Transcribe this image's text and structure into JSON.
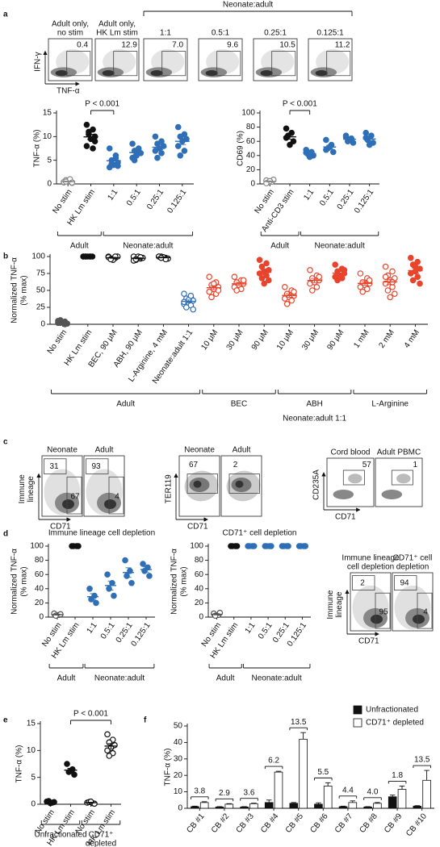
{
  "panel_labels": [
    "a",
    "b",
    "c",
    "d",
    "e",
    "f"
  ],
  "panel_a_flow": {
    "bracket": "Neonate:adult",
    "y_label": "IFN-γ",
    "x_label": "TNF-α",
    "plots": [
      {
        "title": [
          "Adult only,",
          "no stim"
        ],
        "gates": [
          "0.4"
        ]
      },
      {
        "title": [
          "Adult only,",
          "HK Lm stim"
        ],
        "gates": [
          "12.9"
        ]
      },
      {
        "title": "1:1",
        "gates": [
          "7.0"
        ]
      },
      {
        "title": "0.5:1",
        "gates": [
          "9.6"
        ]
      },
      {
        "title": "0.25:1",
        "gates": [
          "10.5"
        ]
      },
      {
        "title": "0.125:1",
        "gates": [
          "11.2"
        ]
      }
    ]
  },
  "panel_c_flow": [
    {
      "y_label": [
        "Immune",
        "lineage"
      ],
      "x_label": "CD71",
      "plots": [
        {
          "title": "Neonate",
          "gates": [
            "31",
            "67"
          ]
        },
        {
          "title": "Adult",
          "gates": [
            "93",
            "4"
          ]
        }
      ]
    },
    {
      "y_label": "TER119",
      "x_label": "CD71",
      "plots": [
        {
          "title": "Neonate",
          "gates": [
            "67"
          ]
        },
        {
          "title": "Adult",
          "gates": [
            "2"
          ]
        }
      ]
    },
    {
      "y_label": "CD235A",
      "x_label": "CD71",
      "plots": [
        {
          "title": "Cord blood",
          "gates": [
            "57"
          ]
        },
        {
          "title": "Adult PBMC",
          "gates": [
            "1"
          ]
        }
      ]
    }
  ],
  "panel_d_flow": {
    "y_label": [
      "Immune",
      "lineage"
    ],
    "x_label": "CD71",
    "plots": [
      {
        "title": [
          "Immune lineage",
          "cell depletion"
        ],
        "gates": [
          "2",
          "95"
        ]
      },
      {
        "title": [
          "CD71⁺ cell",
          "depletion"
        ],
        "gates": [
          "94",
          "4"
        ]
      }
    ]
  },
  "chart_data": [
    {
      "type": "dot",
      "y_label": "TNF-α (%)",
      "annotation": "P < 0.001",
      "ylim": [
        0,
        15
      ],
      "yticks": [
        0,
        5,
        10,
        15
      ],
      "groups": [
        {
          "label": "Adult",
          "categories": [
            "No stim",
            "HK Lm stim"
          ],
          "colors": [
            "#888888",
            "#111111"
          ],
          "markers": [
            "open",
            "filled"
          ],
          "values": [
            [
              0.3,
              0.5,
              0.8,
              0.2,
              0.6,
              0.4,
              1.0,
              0.5,
              0.3
            ],
            [
              12.5,
              11.5,
              10.5,
              10,
              9.5,
              8,
              7.5,
              11,
              9
            ]
          ]
        },
        {
          "label": "Neonate:adult",
          "categories": [
            "1:1",
            "0.5:1",
            "0.25:1",
            "0.125:1"
          ],
          "colors": [
            "#2e6fb7",
            "#2e6fb7",
            "#2e6fb7",
            "#2e6fb7"
          ],
          "markers": [
            "filled",
            "filled",
            "filled",
            "filled"
          ],
          "values": [
            [
              7.5,
              6,
              5,
              4.5,
              4,
              3.5,
              5.5,
              4.2,
              3.8
            ],
            [
              8.5,
              7.5,
              7,
              6.5,
              6,
              5.5,
              7,
              5
            ],
            [
              10,
              9,
              8.5,
              8,
              7.5,
              7,
              6.5,
              5.5
            ],
            [
              12,
              10.5,
              10,
              9.5,
              9,
              8,
              7,
              6
            ]
          ]
        }
      ]
    },
    {
      "type": "dot",
      "y_label": "CD69 (%)",
      "annotation": "P < 0.001",
      "ylim": [
        0,
        100
      ],
      "yticks": [
        0,
        20,
        40,
        60,
        80,
        100
      ],
      "groups": [
        {
          "label": "Adult",
          "categories": [
            "No stim",
            "Anti-CD3 stim"
          ],
          "colors": [
            "#888888",
            "#111111"
          ],
          "markers": [
            "open",
            "filled"
          ],
          "values": [
            [
              5,
              3,
              2,
              6,
              4,
              1
            ],
            [
              78,
              72,
              68,
              60,
              55,
              65
            ]
          ]
        },
        {
          "label": "Neonate:adult",
          "categories": [
            "1:1",
            "0.5:1",
            "0.25:1",
            "0.125:1"
          ],
          "colors": [
            "#2e6fb7",
            "#2e6fb7",
            "#2e6fb7",
            "#2e6fb7"
          ],
          "markers": [
            "filled",
            "filled",
            "filled",
            "filled"
          ],
          "values": [
            [
              48,
              45,
              42,
              40,
              38,
              44
            ],
            [
              62,
              55,
              50,
              45,
              52,
              48
            ],
            [
              68,
              64,
              60,
              58,
              62,
              66
            ],
            [
              72,
              68,
              62,
              58,
              55,
              65
            ]
          ]
        }
      ]
    },
    {
      "type": "dot",
      "y_label": [
        "Normalized TNF-α",
        "(% max)"
      ],
      "caption": "Neonate:adult 1:1",
      "ylim": [
        0,
        100
      ],
      "yticks": [
        0,
        25,
        50,
        75,
        100
      ],
      "groups": [
        {
          "label": "Adult",
          "categories": [
            "No stim",
            "HK Lm stim",
            "BEC, 90 μM",
            "ABH, 90 μM",
            "L-Arginine, 4 mM",
            "Neonate:adult 1:1"
          ],
          "colors": [
            "#555555",
            "#111111",
            "#111111",
            "#111111",
            "#111111",
            "#2e6fb7"
          ],
          "markers": [
            "filled",
            "filled",
            "open",
            "open",
            "open",
            "open"
          ],
          "values": [
            [
              2,
              4,
              6,
              1,
              3,
              5,
              0,
              2
            ],
            [
              100,
              100,
              100,
              100,
              100,
              100,
              100,
              100
            ],
            [
              100,
              98,
              97,
              100,
              95,
              99,
              100,
              96
            ],
            [
              100,
              97,
              95,
              98,
              100,
              94,
              99,
              96
            ],
            [
              100,
              98,
              100,
              97,
              99,
              100,
              96,
              98
            ],
            [
              45,
              40,
              38,
              35,
              32,
              30,
              28,
              25,
              22,
              36,
              33,
              42
            ]
          ]
        },
        {
          "label": "BEC",
          "categories": [
            "10 μM",
            "30 μM",
            "90 μM"
          ],
          "colors": [
            "#e8442c",
            "#e8442c",
            "#e8442c"
          ],
          "markers": [
            "open",
            "open",
            "filled"
          ],
          "values": [
            [
              70,
              62,
              58,
              55,
              52,
              48,
              45,
              40,
              50,
              60
            ],
            [
              70,
              65,
              62,
              60,
              58,
              55,
              52,
              50,
              65
            ],
            [
              95,
              90,
              85,
              80,
              78,
              75,
              72,
              68,
              65,
              60
            ]
          ]
        },
        {
          "label": "ABH",
          "categories": [
            "10 μM",
            "30 μM",
            "90 μM"
          ],
          "colors": [
            "#e8442c",
            "#e8442c",
            "#e8442c"
          ],
          "markers": [
            "open",
            "open",
            "filled"
          ],
          "values": [
            [
              55,
              50,
              45,
              42,
              40,
              38,
              35,
              30,
              48
            ],
            [
              80,
              72,
              68,
              65,
              62,
              60,
              55,
              50,
              70
            ],
            [
              88,
              82,
              78,
              75,
              72,
              70,
              68,
              65,
              80
            ]
          ]
        },
        {
          "label": "L-Arginine",
          "categories": [
            "1 mM",
            "2 mM",
            "4 mM"
          ],
          "colors": [
            "#e8442c",
            "#e8442c",
            "#e8442c"
          ],
          "markers": [
            "open",
            "open",
            "filled"
          ],
          "values": [
            [
              75,
              68,
              62,
              60,
              58,
              55,
              52,
              48,
              65
            ],
            [
              85,
              78,
              72,
              68,
              65,
              60,
              55,
              50,
              45,
              40,
              70,
              62
            ],
            [
              98,
              92,
              88,
              82,
              78,
              75,
              70,
              65,
              60,
              85
            ]
          ]
        }
      ]
    },
    {
      "type": "dot",
      "title": "Immune lineage cell depletion",
      "y_label": [
        "Normalized TNF-α",
        "(% max)"
      ],
      "ylim": [
        0,
        100
      ],
      "yticks": [
        0,
        20,
        40,
        60,
        80,
        100
      ],
      "groups": [
        {
          "label": "Adult",
          "categories": [
            "No stim",
            "HK Lm stim"
          ],
          "colors": [
            "#555555",
            "#111111"
          ],
          "markers": [
            "open",
            "filled"
          ],
          "values": [
            [
              5,
              3,
              2,
              4
            ],
            [
              100,
              100,
              100,
              100
            ]
          ]
        },
        {
          "label": "Neonate:adult",
          "categories": [
            "1:1",
            "0.5:1",
            "0.25:1",
            "0.125:1"
          ],
          "colors": [
            "#2e6fb7",
            "#2e6fb7",
            "#2e6fb7",
            "#2e6fb7"
          ],
          "markers": [
            "filled",
            "filled",
            "filled",
            "filled"
          ],
          "values": [
            [
              40,
              30,
              25,
              20
            ],
            [
              60,
              48,
              40,
              30
            ],
            [
              80,
              65,
              58,
              48
            ],
            [
              75,
              70,
              65,
              58
            ]
          ]
        }
      ]
    },
    {
      "type": "dot",
      "title": "CD71⁺ cell depletion",
      "y_label": [
        "Normalized TNF-α",
        "(% max)"
      ],
      "ylim": [
        0,
        100
      ],
      "yticks": [
        0,
        20,
        40,
        60,
        80,
        100
      ],
      "groups": [
        {
          "label": "Adult",
          "categories": [
            "No stim",
            "HK Lm stim"
          ],
          "colors": [
            "#555555",
            "#111111"
          ],
          "markers": [
            "open",
            "filled"
          ],
          "values": [
            [
              5,
              3,
              2,
              6
            ],
            [
              100,
              100,
              100,
              100
            ]
          ]
        },
        {
          "label": "Neonate:adult",
          "categories": [
            "1:1",
            "0.5:1",
            "0.25:1",
            "0.125:1"
          ],
          "colors": [
            "#2e6fb7",
            "#2e6fb7",
            "#2e6fb7",
            "#2e6fb7"
          ],
          "markers": [
            "filled",
            "filled",
            "filled",
            "filled"
          ],
          "values": [
            [
              100,
              100,
              100,
              100
            ],
            [
              100,
              100,
              100,
              100
            ],
            [
              100,
              100,
              100,
              100
            ],
            [
              100,
              100,
              100,
              100
            ]
          ]
        }
      ]
    },
    {
      "type": "dot",
      "y_label": "TNF-α (%)",
      "annotation": "P < 0.001",
      "ylim": [
        0,
        15
      ],
      "yticks": [
        0,
        5,
        10,
        15
      ],
      "groups": [
        {
          "label": "Unfractionated",
          "categories": [
            "No stim",
            "HK Lm stim"
          ],
          "colors": [
            "#111111",
            "#111111"
          ],
          "markers": [
            "filled",
            "filled"
          ],
          "values": [
            [
              0.5,
              0.3,
              0.6,
              0.4,
              0.2
            ],
            [
              7.5,
              6.5,
              6,
              5.5,
              6.2
            ]
          ]
        },
        {
          "label": [
            "CD71⁺",
            "depleted"
          ],
          "categories": [
            "No stim",
            "HK Lm stim"
          ],
          "colors": [
            "#111111",
            "#111111"
          ],
          "markers": [
            "open",
            "open"
          ],
          "values": [
            [
              0.3,
              0.2,
              0.4,
              0.1,
              0.5
            ],
            [
              13,
              12,
              11.5,
              11,
              10.5,
              10,
              9.5,
              9
            ]
          ]
        }
      ]
    },
    {
      "type": "bar",
      "y_label": "TNF-α (%)",
      "legend": "upper right",
      "ylim": [
        0,
        50
      ],
      "yticks": [
        0,
        10,
        20,
        30,
        40,
        50
      ],
      "categories": [
        "CB #1",
        "CB #2",
        "CB #3",
        "CB #4",
        "CB #5",
        "CB #6",
        "CB #7",
        "CB #8",
        "CB #9",
        "CB #10"
      ],
      "series": [
        {
          "name": "Unfractionated",
          "color": "#111111",
          "values": [
            1,
            0.8,
            0.8,
            3.5,
            3,
            2.5,
            1,
            0.8,
            7,
            1.3
          ],
          "errors": [
            0.3,
            0.2,
            0.2,
            1.5,
            0.5,
            0.8,
            0.3,
            0.2,
            1,
            0.3
          ]
        },
        {
          "name": "CD71⁺ depleted",
          "color": "#ffffff",
          "values": [
            3.5,
            2.5,
            2.8,
            22,
            42,
            13.5,
            3.5,
            3,
            11.5,
            17
          ],
          "errors": [
            0.5,
            0.3,
            0.3,
            0.5,
            4,
            2,
            1,
            0.5,
            2,
            6
          ]
        }
      ],
      "annotations": [
        "3.8",
        "2.9",
        "3.6",
        "6.2",
        "13.5",
        "5.5",
        "4.4",
        "4.0",
        "1.8",
        "13.5"
      ]
    }
  ]
}
